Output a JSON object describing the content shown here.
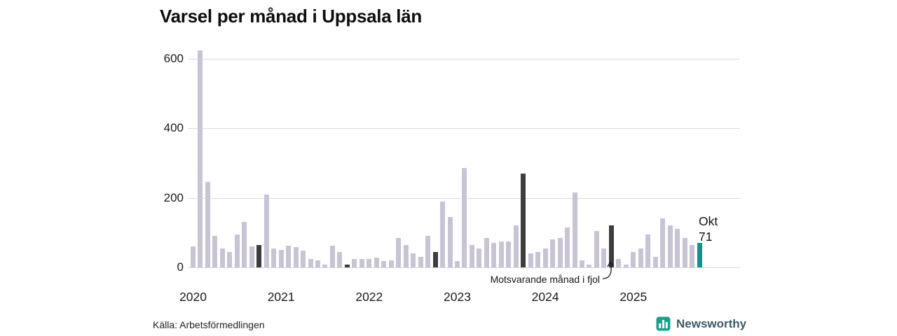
{
  "chart_data": {
    "type": "bar",
    "title": "Varsel per månad i Uppsala län",
    "xlabel": "",
    "ylabel": "",
    "ylim": [
      0,
      600
    ],
    "yticks": [
      0,
      200,
      400,
      600
    ],
    "xticks": [
      "2020",
      "2021",
      "2022",
      "2023",
      "2024",
      "2025"
    ],
    "grid": "horizontal",
    "annotation": "Motsvarande månad i fjol",
    "annotation_points_to": "okt 2024",
    "last_point_label": {
      "month": "Okt",
      "value": 71
    },
    "colors": {
      "bar": "#c8c4d4",
      "october": "#3d3d3d",
      "current": "#0e9488",
      "grid": "#dadada"
    },
    "months": [
      "jan 2020",
      "feb 2020",
      "mar 2020",
      "apr 2020",
      "maj 2020",
      "jun 2020",
      "jul 2020",
      "aug 2020",
      "sep 2020",
      "okt 2020",
      "nov 2020",
      "dec 2020",
      "jan 2021",
      "feb 2021",
      "mar 2021",
      "apr 2021",
      "maj 2021",
      "jun 2021",
      "jul 2021",
      "aug 2021",
      "sep 2021",
      "okt 2021",
      "nov 2021",
      "dec 2021",
      "jan 2022",
      "feb 2022",
      "mar 2022",
      "apr 2022",
      "maj 2022",
      "jun 2022",
      "jul 2022",
      "aug 2022",
      "sep 2022",
      "okt 2022",
      "nov 2022",
      "dec 2022",
      "jan 2023",
      "feb 2023",
      "mar 2023",
      "apr 2023",
      "maj 2023",
      "jun 2023",
      "jul 2023",
      "aug 2023",
      "sep 2023",
      "okt 2023",
      "nov 2023",
      "dec 2023",
      "jan 2024",
      "feb 2024",
      "mar 2024",
      "apr 2024",
      "maj 2024",
      "jun 2024",
      "jul 2024",
      "aug 2024",
      "sep 2024",
      "okt 2024",
      "nov 2024",
      "dec 2024",
      "jan 2025",
      "feb 2025",
      "mar 2025",
      "apr 2025",
      "maj 2025",
      "jun 2025",
      "jul 2025",
      "aug 2025",
      "sep 2025",
      "okt 2025"
    ],
    "values": [
      60,
      625,
      245,
      90,
      55,
      45,
      95,
      130,
      60,
      65,
      210,
      55,
      50,
      62,
      58,
      48,
      25,
      20,
      8,
      62,
      45,
      8,
      25,
      25,
      25,
      28,
      18,
      20,
      85,
      65,
      40,
      30,
      90,
      45,
      190,
      145,
      18,
      285,
      65,
      55,
      85,
      70,
      75,
      75,
      120,
      270,
      40,
      45,
      55,
      80,
      85,
      115,
      215,
      20,
      8,
      105,
      55,
      120,
      25,
      8,
      45,
      55,
      95,
      30,
      140,
      120,
      110,
      85,
      65,
      71
    ]
  },
  "source": "Källa: Arbetsförmedlingen",
  "brand": {
    "name": "Newsworthy"
  }
}
